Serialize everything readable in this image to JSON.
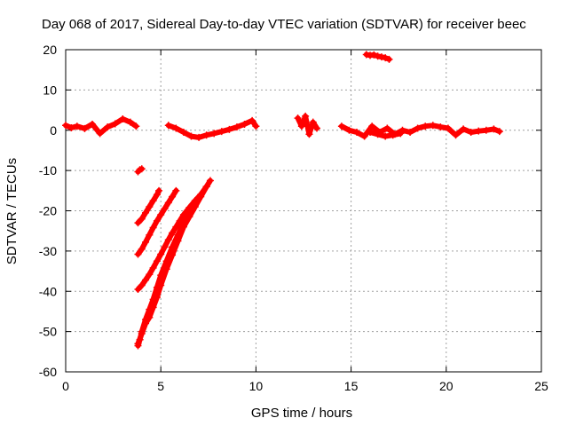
{
  "chart_data": {
    "type": "scatter",
    "title": "Day 068 of 2017, Sidereal Day-to-day VTEC variation (SDTVAR) for receiver beec",
    "xlabel": "GPS time / hours",
    "ylabel": "SDTVAR / TECUs",
    "xlim": [
      0,
      25
    ],
    "ylim": [
      -60,
      20
    ],
    "xticks": [
      0,
      5,
      10,
      15,
      20,
      25
    ],
    "yticks": [
      -60,
      -50,
      -40,
      -30,
      -20,
      -10,
      0,
      10,
      20
    ],
    "grid": true,
    "marker_color": "#ff0000",
    "series": [
      {
        "name": "arc-1",
        "x": [
          0,
          0.3,
          0.6,
          1.0,
          1.4,
          1.8,
          2.2,
          2.6,
          3.0,
          3.4,
          3.7
        ],
        "y": [
          1.2,
          0.6,
          1.0,
          0.4,
          1.5,
          -0.8,
          0.8,
          1.6,
          2.8,
          2.0,
          1.0
        ]
      },
      {
        "name": "arc-2",
        "x": [
          5.4,
          5.8,
          6.2,
          6.6,
          7.0,
          7.4,
          7.8,
          8.2,
          8.6,
          9.0,
          9.4,
          9.8,
          10.0
        ],
        "y": [
          1.2,
          0.5,
          -0.5,
          -1.5,
          -1.8,
          -1.2,
          -0.8,
          -0.3,
          0.2,
          0.8,
          1.5,
          2.4,
          1.0
        ]
      },
      {
        "name": "arc-3",
        "x": [
          12.2,
          12.4,
          12.6,
          12.8,
          13.0,
          13.2
        ],
        "y": [
          3.0,
          1.0,
          3.5,
          -1.0,
          2.0,
          0.5
        ]
      },
      {
        "name": "arc-4",
        "x": [
          14.5,
          14.9,
          15.3,
          15.7,
          16.1,
          16.5,
          16.9,
          17.3,
          17.7,
          18.1,
          18.5,
          18.9,
          19.3,
          19.7,
          20.1,
          20.5,
          20.9,
          21.3,
          21.7,
          22.1,
          22.5,
          22.8
        ],
        "y": [
          1.0,
          0.0,
          -0.5,
          -1.5,
          1.0,
          -0.5,
          0.5,
          -1.0,
          0.0,
          -0.5,
          0.5,
          1.0,
          1.2,
          0.8,
          0.5,
          -1.2,
          0.3,
          -0.5,
          -0.2,
          0.0,
          0.3,
          -0.3
        ]
      },
      {
        "name": "arc-4b",
        "x": [
          16.0,
          16.4,
          16.8,
          17.2,
          17.6
        ],
        "y": [
          -0.5,
          -1.0,
          -1.5,
          -1.2,
          -0.8
        ]
      },
      {
        "name": "arc-5",
        "x": [
          15.8,
          16.0,
          16.2,
          16.4,
          16.6,
          16.8,
          17.0
        ],
        "y": [
          18.8,
          18.6,
          18.7,
          18.4,
          18.2,
          18.0,
          17.6
        ]
      },
      {
        "name": "arc-6",
        "x": [
          3.8,
          3.9,
          4.0
        ],
        "y": [
          -10.3,
          -9.8,
          -9.6
        ]
      },
      {
        "name": "arc-7",
        "x": [
          3.8,
          4.0,
          4.2,
          4.4,
          4.6,
          4.8,
          4.9
        ],
        "y": [
          -23.0,
          -22.0,
          -20.5,
          -19.0,
          -17.5,
          -16.0,
          -15.0
        ]
      },
      {
        "name": "arc-8",
        "x": [
          3.8,
          4.0,
          4.2,
          4.4,
          4.6,
          4.8,
          5.0,
          5.2,
          5.4,
          5.6,
          5.8
        ],
        "y": [
          -30.8,
          -29.5,
          -27.8,
          -26.0,
          -24.2,
          -22.5,
          -21.0,
          -19.5,
          -18.0,
          -16.5,
          -15.0
        ]
      },
      {
        "name": "arc-9",
        "x": [
          3.8,
          4.0,
          4.2,
          4.4,
          4.6,
          4.8,
          5.0,
          5.2,
          5.4,
          5.6,
          5.8,
          6.0,
          6.2,
          6.5,
          6.8,
          7.1
        ],
        "y": [
          -39.5,
          -38.5,
          -37.2,
          -35.8,
          -34.2,
          -32.5,
          -30.8,
          -29.0,
          -27.2,
          -25.5,
          -24.0,
          -22.5,
          -21.0,
          -19.2,
          -17.5,
          -16.0
        ]
      },
      {
        "name": "arc-10",
        "x": [
          3.8,
          3.9,
          4.0,
          4.2,
          4.4,
          4.6,
          4.8,
          5.0,
          5.3,
          5.6,
          5.9,
          6.2,
          6.5,
          6.8,
          7.1,
          7.4,
          7.6
        ],
        "y": [
          -53.5,
          -52.0,
          -50.0,
          -47.0,
          -44.5,
          -42.0,
          -39.0,
          -36.0,
          -32.5,
          -29.0,
          -26.0,
          -23.0,
          -20.5,
          -18.5,
          -16.0,
          -14.0,
          -12.5
        ]
      },
      {
        "name": "arc-11",
        "x": [
          3.8,
          4.0,
          4.2,
          4.4,
          4.6,
          4.8,
          5.0,
          5.3,
          5.6,
          5.9,
          6.2,
          6.5,
          6.8,
          7.1,
          7.4
        ],
        "y": [
          -53.0,
          -50.5,
          -48.0,
          -46.5,
          -44.0,
          -41.5,
          -38.5,
          -34.5,
          -31.0,
          -27.5,
          -24.0,
          -21.5,
          -19.0,
          -16.5,
          -14.0
        ]
      }
    ]
  }
}
